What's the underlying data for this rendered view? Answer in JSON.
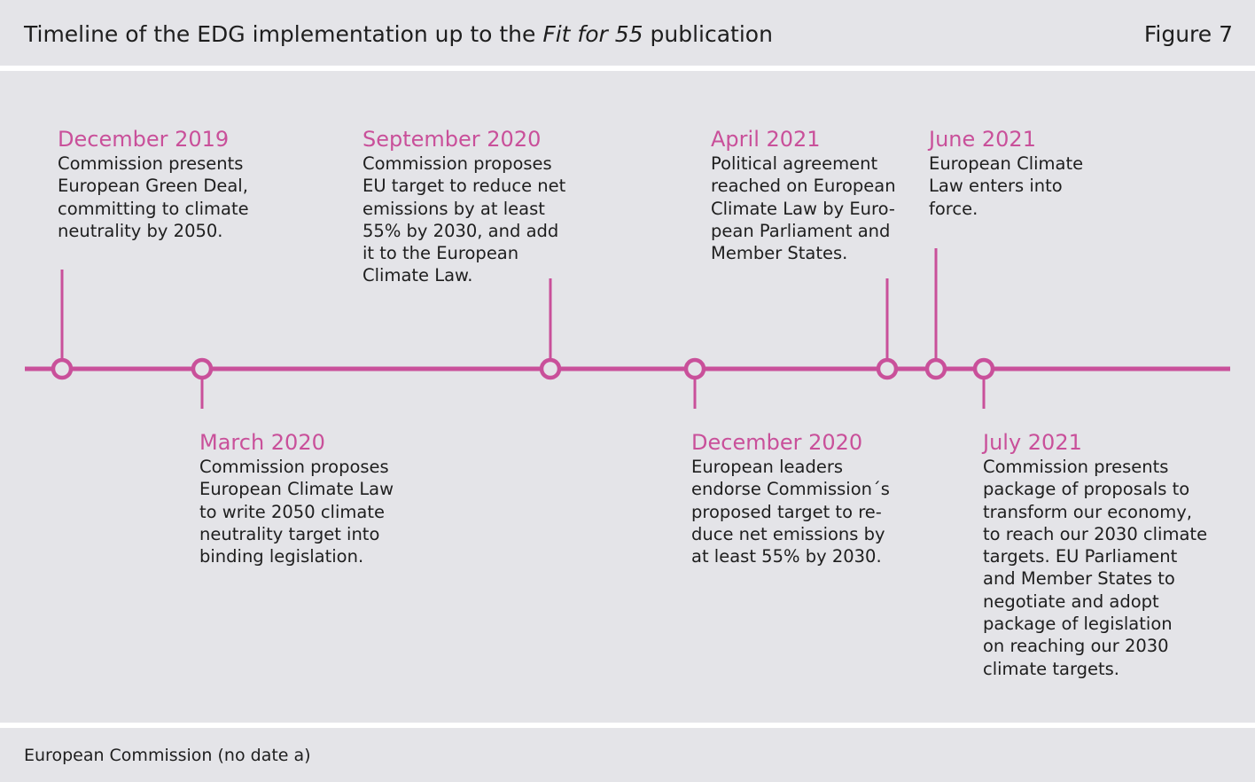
{
  "header": {
    "title_prefix": "Timeline of the EDG implementation up to the ",
    "title_italic": "Fit for 55",
    "title_suffix": " publication",
    "figure_label": "Figure 7"
  },
  "footer": {
    "source": "European Commission (no date a)"
  },
  "colors": {
    "accent": "#c9509a",
    "panel": "#e4e4e8",
    "text": "#1e1e1e"
  },
  "events": [
    {
      "date": "December 2019",
      "desc": "Commission presents\nEuropean Green Deal,\ncommitting to climate\nneutrality by 2050."
    },
    {
      "date": "March 2020",
      "desc": "Commission proposes\nEuropean Climate Law\nto write 2050 climate\nneutrality target into\nbinding legislation."
    },
    {
      "date": "September 2020",
      "desc": "Commission proposes\nEU target to reduce net\nemissions by at least\n55% by 2030, and add\nit to the European\nClimate Law."
    },
    {
      "date": "December 2020",
      "desc": "European leaders\nendorse Commission´s\nproposed target to re-\nduce net emissions by\nat least 55% by 2030."
    },
    {
      "date": "April 2021",
      "desc": "Political agreement\nreached on European\nClimate Law by Euro-\npean Parliament and\nMember States."
    },
    {
      "date": "June 2021",
      "desc": "European Climate\nLaw enters into\nforce."
    },
    {
      "date": "July 2021",
      "desc": "Commission presents\npackage of proposals to\ntransform our economy,\nto reach our 2030 climate\ntargets. EU Parliament\nand Member States to\nnegotiate and adopt\npackage of legislation\non reaching our 2030\nclimate targets."
    }
  ]
}
